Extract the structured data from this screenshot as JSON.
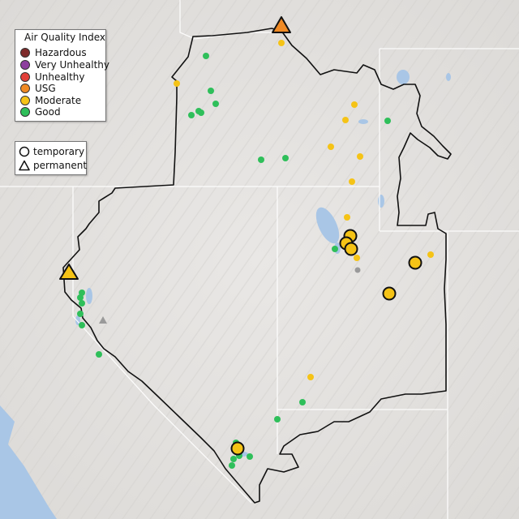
{
  "legend": {
    "title": "Air Quality Index",
    "categories": [
      {
        "label": "Hazardous",
        "color": "#7e2a2a"
      },
      {
        "label": "Very Unhealthy",
        "color": "#8d3f9e"
      },
      {
        "label": "Unhealthy",
        "color": "#e2403a"
      },
      {
        "label": "USG",
        "color": "#f08a24"
      },
      {
        "label": "Moderate",
        "color": "#f5c316"
      },
      {
        "label": "Good",
        "color": "#2fbf5a"
      }
    ],
    "monitor_types": [
      {
        "label": "temporary",
        "shape": "circle-outline"
      },
      {
        "label": "permanent",
        "shape": "triangle-outline"
      }
    ]
  },
  "colors": {
    "background": "#e4e2e0",
    "water": "#a9c6e6",
    "boundary": "#111111",
    "state_lines": "#ffffff",
    "nodata_gray": "#9a9a9a"
  }
}
